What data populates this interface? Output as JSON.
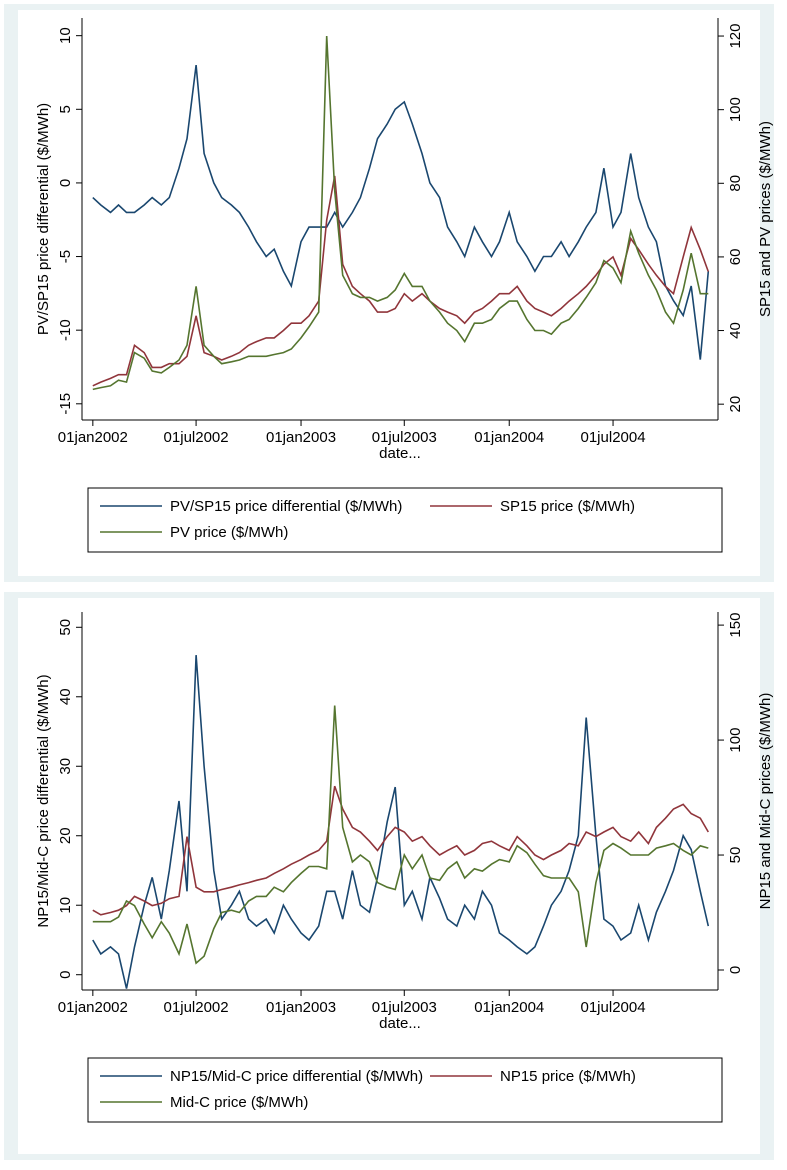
{
  "chart_data": [
    {
      "type": "line",
      "xlabel": "date...",
      "ylabel": "PV/SP15 price differential ($/MWh)",
      "y2label": "SP15 and PV prices ($/MWh)",
      "x": [
        "01jan2002",
        "15jan2002",
        "01feb2002",
        "15feb2002",
        "01mar2002",
        "15mar2002",
        "01apr2002",
        "15apr2002",
        "01may2002",
        "15may2002",
        "01jun2002",
        "15jun2002",
        "01jul2002",
        "15jul2002",
        "01aug2002",
        "15aug2002",
        "01sep2002",
        "15sep2002",
        "01oct2002",
        "15oct2002",
        "01nov2002",
        "15nov2002",
        "01dec2002",
        "15dec2002",
        "01jan2003",
        "15jan2003",
        "01feb2003",
        "15feb2003",
        "01mar2003",
        "15mar2003",
        "01apr2003",
        "15apr2003",
        "01may2003",
        "15may2003",
        "01jun2003",
        "15jun2003",
        "01jul2003",
        "15jul2003",
        "01aug2003",
        "15aug2003",
        "01sep2003",
        "15sep2003",
        "01oct2003",
        "15oct2003",
        "01nov2003",
        "15nov2003",
        "01dec2003",
        "15dec2003",
        "01jan2004",
        "15jan2004",
        "01feb2004",
        "15feb2004",
        "01mar2004",
        "15mar2004",
        "01apr2004",
        "15apr2004",
        "01may2004",
        "15may2004",
        "01jun2004",
        "15jun2004",
        "01jul2004",
        "15jul2004",
        "01aug2004",
        "15aug2004",
        "01sep2004",
        "15sep2004",
        "01oct2004",
        "15oct2004",
        "01nov2004",
        "15nov2004",
        "01dec2004",
        "15dec2004"
      ],
      "xlim": [
        "13dec2001",
        "01jan2005"
      ],
      "xticks": [
        "01jan2002",
        "01jul2002",
        "01jan2003",
        "01jul2003",
        "01jan2004",
        "01jul2004"
      ],
      "ylim": [
        -16.1,
        11.2
      ],
      "yticks": [
        -15,
        -10,
        -5,
        0,
        5,
        10
      ],
      "y2lim": [
        15.7,
        124.9
      ],
      "y2ticks": [
        20,
        40,
        60,
        80,
        100,
        120
      ],
      "legend": "bottom",
      "series": [
        {
          "name": "PV/SP15 price differential ($/MWh)",
          "color": "#1a476f",
          "axis": "y",
          "values": [
            -1,
            -1.5,
            -2,
            -1.5,
            -2,
            -2,
            -1.5,
            -1,
            -1.5,
            -1,
            1,
            3,
            8,
            2,
            0,
            -1,
            -1.5,
            -2,
            -3,
            -4,
            -5,
            -4.5,
            -6,
            -7,
            -4,
            -3,
            -3,
            -3,
            -2,
            -3,
            -2,
            -1,
            1,
            3,
            4,
            5,
            5.5,
            4,
            2,
            0,
            -1,
            -3,
            -4,
            -5,
            -3,
            -4,
            -5,
            -4,
            -2,
            -4,
            -5,
            -6,
            -5,
            -5,
            -4,
            -5,
            -4,
            -3,
            -2,
            1,
            -3,
            -2,
            2,
            -1,
            -3,
            -4,
            -7,
            -8,
            -9,
            -7,
            -12,
            -6
          ]
        },
        {
          "name": "SP15 price ($/MWh)",
          "color": "#90353b",
          "axis": "y2",
          "values": [
            25,
            26,
            27,
            28,
            28,
            36,
            34,
            30,
            30,
            31,
            31,
            33,
            44,
            34,
            33,
            32,
            33,
            34,
            36,
            37,
            38,
            38,
            40,
            42,
            42,
            44,
            48,
            70,
            82,
            58,
            52,
            50,
            48,
            45,
            45,
            46,
            50,
            48,
            50,
            48,
            46,
            45,
            44,
            42,
            45,
            46,
            48,
            50,
            50,
            52,
            48,
            46,
            45,
            44,
            46,
            48,
            50,
            52,
            55,
            58,
            60,
            55,
            65,
            62,
            58,
            55,
            52,
            50,
            60,
            68,
            62,
            56
          ]
        },
        {
          "name": "PV price ($/MWh)",
          "color": "#55752f",
          "axis": "y2",
          "values": [
            24,
            24.5,
            25,
            26.5,
            26,
            34,
            32.5,
            29,
            28.5,
            30,
            32,
            36,
            52,
            36,
            33,
            31,
            31.5,
            32,
            33,
            33,
            33,
            33.5,
            34,
            35,
            38,
            41,
            45,
            120,
            78,
            55,
            50,
            49,
            49,
            48,
            49,
            51,
            55.5,
            52,
            52,
            48,
            45,
            42,
            40,
            37,
            42,
            42,
            43,
            46,
            48,
            48,
            43,
            40,
            40,
            39,
            42,
            43,
            46,
            49,
            53,
            59,
            57,
            53,
            67,
            61,
            55,
            51,
            45,
            42,
            51,
            61,
            50,
            50
          ]
        }
      ]
    },
    {
      "type": "line",
      "xlabel": "date...",
      "ylabel": "NP15/Mid-C price differential ($/MWh)",
      "y2label": "NP15 and Mid-C prices ($/MWh)",
      "x": [
        "01jan2002",
        "15jan2002",
        "01feb2002",
        "15feb2002",
        "01mar2002",
        "15mar2002",
        "01apr2002",
        "15apr2002",
        "01may2002",
        "15may2002",
        "01jun2002",
        "15jun2002",
        "01jul2002",
        "15jul2002",
        "01aug2002",
        "15aug2002",
        "01sep2002",
        "15sep2002",
        "01oct2002",
        "15oct2002",
        "01nov2002",
        "15nov2002",
        "01dec2002",
        "15dec2002",
        "01jan2003",
        "15jan2003",
        "01feb2003",
        "15feb2003",
        "01mar2003",
        "15mar2003",
        "01apr2003",
        "15apr2003",
        "01may2003",
        "15may2003",
        "01jun2003",
        "15jun2003",
        "01jul2003",
        "15jul2003",
        "01aug2003",
        "15aug2003",
        "01sep2003",
        "15sep2003",
        "01oct2003",
        "15oct2003",
        "01nov2003",
        "15nov2003",
        "01dec2003",
        "15dec2003",
        "01jan2004",
        "15jan2004",
        "01feb2004",
        "15feb2004",
        "01mar2004",
        "15mar2004",
        "01apr2004",
        "15apr2004",
        "01may2004",
        "15may2004",
        "01jun2004",
        "15jun2004",
        "01jul2004",
        "15jul2004",
        "01aug2004",
        "15aug2004",
        "01sep2004",
        "15sep2004",
        "01oct2004",
        "15oct2004",
        "01nov2004",
        "15nov2004",
        "01dec2004",
        "15dec2004"
      ],
      "xlim": [
        "13dec2001",
        "01jan2005"
      ],
      "xticks": [
        "01jan2002",
        "01jul2002",
        "01jan2003",
        "01jul2003",
        "01jan2004",
        "01jul2004"
      ],
      "ylim": [
        -2.2,
        52.2
      ],
      "yticks": [
        0,
        10,
        20,
        30,
        40,
        50
      ],
      "y2lim": [
        -8.7,
        155.7
      ],
      "y2ticks": [
        0,
        50,
        100,
        150
      ],
      "legend": "bottom",
      "series": [
        {
          "name": "NP15/Mid-C price differential ($/MWh)",
          "color": "#1a476f",
          "axis": "y",
          "values": [
            5,
            3,
            4,
            3,
            -2,
            4,
            10,
            14,
            8,
            15,
            25,
            12,
            46,
            30,
            15,
            8,
            10,
            12,
            8,
            7,
            8,
            6,
            10,
            8,
            6,
            5,
            7,
            12,
            12,
            8,
            15,
            10,
            9,
            14,
            22,
            27,
            10,
            12,
            8,
            14,
            11,
            8,
            7,
            10,
            8,
            12,
            10,
            6,
            5,
            4,
            3,
            4,
            7,
            10,
            12,
            15,
            20,
            37,
            20,
            8,
            7,
            5,
            6,
            10,
            5,
            9,
            12,
            15,
            20,
            18,
            12,
            7
          ]
        },
        {
          "name": "NP15 price ($/MWh)",
          "color": "#90353b",
          "axis": "y2",
          "values": [
            26,
            24,
            25,
            26,
            28,
            32,
            30,
            28,
            29,
            31,
            32,
            58,
            36,
            34,
            34,
            35,
            36,
            37,
            38,
            39,
            40,
            42,
            44,
            46,
            48,
            50,
            52,
            56,
            80,
            70,
            62,
            60,
            56,
            52,
            58,
            62,
            60,
            56,
            58,
            54,
            50,
            52,
            54,
            50,
            52,
            55,
            56,
            54,
            52,
            58,
            54,
            50,
            48,
            50,
            52,
            55,
            54,
            60,
            58,
            60,
            62,
            58,
            56,
            60,
            55,
            62,
            66,
            70,
            72,
            68,
            66,
            60
          ]
        },
        {
          "name": "Mid-C price ($/MWh)",
          "color": "#55752f",
          "axis": "y2",
          "values": [
            21,
            21,
            21,
            23,
            30,
            28,
            20,
            14,
            21,
            16,
            7,
            20,
            3,
            6,
            18,
            25,
            26,
            25,
            30,
            32,
            32,
            36,
            34,
            38,
            42,
            45,
            45,
            44,
            115,
            62,
            47,
            50,
            47,
            38,
            36,
            35,
            50,
            44,
            50,
            40,
            39,
            44,
            47,
            40,
            44,
            43,
            46,
            48,
            47,
            54,
            51,
            46,
            41,
            40,
            40,
            40,
            34,
            10,
            38,
            52,
            55,
            53,
            50,
            50,
            50,
            53,
            54,
            55,
            52,
            50,
            54,
            53
          ]
        }
      ]
    }
  ]
}
